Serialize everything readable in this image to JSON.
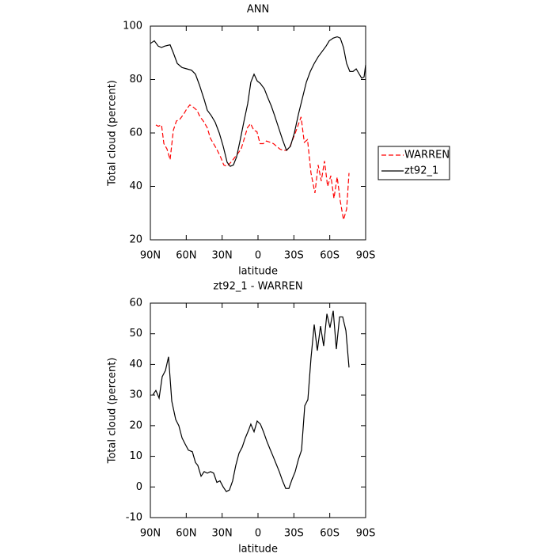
{
  "chart_data": [
    {
      "type": "line",
      "title": "ANN",
      "xlabel": "latitude",
      "ylabel": "Total cloud (percent)",
      "xlim": [
        90,
        -90
      ],
      "xticks": [
        {
          "value": 90,
          "label": "90N"
        },
        {
          "value": 60,
          "label": "60N"
        },
        {
          "value": 30,
          "label": "30N"
        },
        0,
        {
          "value": -30,
          "label": "30S"
        },
        {
          "value": -60,
          "label": "60S"
        },
        {
          "value": -90,
          "label": "90S"
        }
      ],
      "ylim": [
        20,
        100
      ],
      "yticks": [
        20,
        40,
        60,
        80,
        100
      ],
      "legend": "right",
      "series": [
        {
          "name": "WARREN",
          "color": "#ff0000",
          "dashed": true,
          "x": [
            85.4,
            83.4,
            80.7,
            78.7,
            76.1,
            73.5,
            70.8,
            68.2,
            65.6,
            62.2,
            59.6,
            57.0,
            53.7,
            51.1,
            48.4,
            45.8,
            42.5,
            39.8,
            37.2,
            34.6,
            31.3,
            28.6,
            26.0,
            22.7,
            20.0,
            17.4,
            14.1,
            11.4,
            8.8,
            6.2,
            3.5,
            0.9,
            -1.7,
            -4.4,
            -7.0,
            -10.3,
            -12.9,
            -15.6,
            -18.2,
            -20.8,
            -24.1,
            -26.8,
            -29.4,
            -32.0,
            -36.0,
            -38.7,
            -41.4,
            -44.3,
            -47.6,
            -50.3,
            -52.9,
            -55.6,
            -58.2,
            -60.9,
            -63.5,
            -66.2,
            -68.8,
            -71.5,
            -74.1,
            -76.1
          ],
          "values": [
            63,
            62.5,
            63,
            56,
            54,
            50,
            61,
            64.5,
            65,
            67,
            69,
            70.5,
            69.5,
            68.5,
            66,
            64.5,
            62,
            58,
            56,
            54,
            51,
            48,
            47.5,
            49,
            50.5,
            52,
            54,
            58,
            62,
            63.5,
            61,
            60.5,
            56,
            56,
            57,
            56.5,
            56,
            55,
            54,
            53.5,
            53.5,
            55,
            58,
            61,
            66,
            56.5,
            57.5,
            45,
            37.5,
            48,
            42,
            49.5,
            40,
            44,
            35.5,
            43.5,
            34.5,
            27.5,
            31.5,
            45
          ]
        },
        {
          "name": "zt92_1",
          "color": "#000000",
          "dashed": false,
          "x": [
            90,
            86.7,
            83.4,
            80.7,
            78.1,
            73.5,
            70.8,
            67.5,
            63.5,
            59.6,
            55.6,
            52.3,
            49.0,
            45.0,
            42.4,
            39.1,
            35.8,
            32.4,
            29.1,
            25.8,
            23.2,
            20.6,
            17.9,
            14.6,
            11.9,
            8.6,
            6.0,
            3.3,
            0.7,
            -2.0,
            -5.3,
            -7.9,
            -11.2,
            -13.9,
            -17.2,
            -20.5,
            -23.8,
            -27.1,
            -30.4,
            -33.8,
            -37.1,
            -40.4,
            -43.7,
            -47.0,
            -50.3,
            -53.6,
            -56.9,
            -59.6,
            -62.9,
            -66.2,
            -68.8,
            -71.5,
            -74.1,
            -76.8,
            -79.4,
            -82.1,
            -84.7,
            -86.7,
            -88.7,
            -90
          ],
          "values": [
            93.5,
            94.5,
            92.5,
            92,
            92.5,
            93,
            90,
            86,
            84.5,
            84,
            83.5,
            82,
            78,
            72.5,
            68.5,
            66.5,
            64,
            60,
            55,
            49,
            47.5,
            48,
            51,
            58,
            64,
            71,
            79,
            82,
            79.5,
            78.5,
            76.5,
            73.5,
            70,
            66.5,
            62,
            57.5,
            53.5,
            55,
            60,
            67,
            73,
            79,
            83,
            86,
            88.5,
            90.5,
            92.5,
            94.5,
            95.5,
            96,
            95.5,
            92,
            86,
            83,
            83,
            84,
            82,
            80.5,
            81,
            85.5
          ]
        }
      ]
    },
    {
      "type": "line",
      "title": "zt92_1 - WARREN",
      "xlabel": "latitude",
      "ylabel": "Total cloud (percent)",
      "xlim": [
        90,
        -90
      ],
      "xticks": [
        {
          "value": 90,
          "label": "90N"
        },
        {
          "value": 60,
          "label": "60N"
        },
        {
          "value": 30,
          "label": "30N"
        },
        0,
        {
          "value": -30,
          "label": "30S"
        },
        {
          "value": -60,
          "label": "60S"
        },
        {
          "value": -90,
          "label": "90S"
        }
      ],
      "ylim": [
        -10,
        60
      ],
      "yticks": [
        -10,
        0,
        10,
        20,
        30,
        40,
        50,
        60
      ],
      "series": [
        {
          "color": "#000000",
          "dashed": false,
          "x": [
            88.0,
            85.4,
            82.7,
            80.1,
            77.4,
            74.8,
            72.1,
            68.8,
            66.2,
            63.5,
            60.9,
            58.2,
            54.9,
            52.3,
            50.3,
            47.6,
            45.0,
            42.4,
            39.7,
            37.1,
            34.4,
            31.8,
            29.1,
            26.5,
            23.9,
            21.2,
            18.6,
            15.9,
            13.2,
            10.6,
            7.9,
            6.0,
            3.3,
            0.7,
            -2.0,
            -4.6,
            -7.3,
            -9.9,
            -12.6,
            -15.2,
            -17.8,
            -20.5,
            -23.2,
            -25.8,
            -28.5,
            -31.1,
            -33.8,
            -36.4,
            -39.1,
            -41.7,
            -44.3,
            -47.0,
            -49.6,
            -52.3,
            -54.9,
            -57.6,
            -60.2,
            -62.9,
            -65.5,
            -68.2,
            -70.8,
            -73.5,
            -76.1
          ],
          "values": [
            30,
            31.5,
            29,
            36,
            38,
            42.5,
            28,
            22,
            20,
            16,
            14,
            12,
            11.5,
            8,
            7,
            3.5,
            5,
            4.5,
            5,
            4.5,
            1.5,
            2,
            0,
            -1.5,
            -1,
            2,
            7,
            11,
            13,
            16,
            18.5,
            20.5,
            18,
            21.5,
            20.5,
            18,
            15,
            12.5,
            10,
            7.5,
            5,
            2,
            -0.5,
            -0.5,
            2.5,
            5,
            9,
            12,
            26.5,
            28.5,
            42,
            53,
            44.5,
            52.5,
            46,
            56.5,
            52,
            57.5,
            45,
            55.5,
            55.5,
            51,
            39
          ]
        }
      ]
    }
  ]
}
